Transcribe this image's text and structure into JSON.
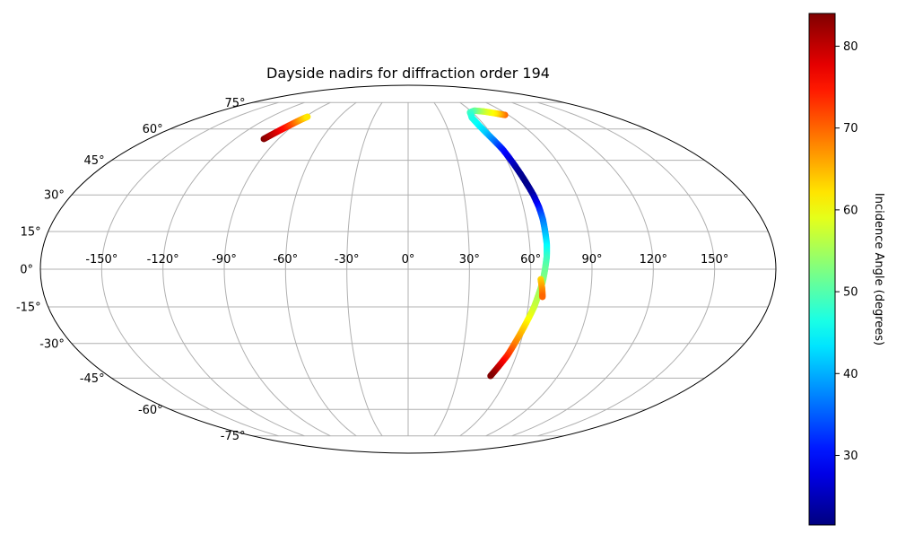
{
  "chart_data": {
    "type": "scatter",
    "projection": "mollweide",
    "title": "Dayside nadirs for diffraction order 194",
    "grid": true,
    "x_axis": {
      "ticks": [
        -150,
        -120,
        -90,
        -60,
        -30,
        0,
        30,
        60,
        90,
        120,
        150
      ],
      "tick_labels": [
        "-150°",
        "-120°",
        "-90°",
        "-60°",
        "-30°",
        "0°",
        "30°",
        "60°",
        "90°",
        "120°",
        "150°"
      ],
      "range": [
        -180,
        180
      ]
    },
    "y_axis": {
      "ticks": [
        -75,
        -60,
        -45,
        -30,
        -15,
        0,
        15,
        30,
        45,
        60,
        75
      ],
      "tick_labels": [
        "-75°",
        "-60°",
        "-45°",
        "-30°",
        "-15°",
        "0°",
        "15°",
        "30°",
        "45°",
        "60°",
        "75°"
      ],
      "range": [
        -90,
        90
      ]
    },
    "colorbar": {
      "label": "Incidence Angle (degrees)",
      "colormap": "jet",
      "range": [
        21.5,
        84
      ],
      "ticks": [
        30,
        40,
        50,
        60,
        70,
        80
      ],
      "tick_labels": [
        "30",
        "40",
        "50",
        "60",
        "70",
        "80"
      ]
    },
    "series": [
      {
        "points": [
          {
            "lon": -100.0,
            "lat": 55.0,
            "value": 84
          },
          {
            "lon": -98.0,
            "lat": 57.0,
            "value": 81
          },
          {
            "lon": -96.0,
            "lat": 59.0,
            "value": 78
          },
          {
            "lon": -94.0,
            "lat": 61.0,
            "value": 75
          },
          {
            "lon": -92.0,
            "lat": 63.0,
            "value": 71
          },
          {
            "lon": -90.0,
            "lat": 65.0,
            "value": 66
          },
          {
            "lon": -88.0,
            "lat": 66.5,
            "value": 62
          }
        ]
      },
      {
        "points": [
          {
            "lon": 87.0,
            "lat": 67.5,
            "value": 70
          },
          {
            "lon": 80.0,
            "lat": 68.5,
            "value": 62
          },
          {
            "lon": 72.0,
            "lat": 69.5,
            "value": 58
          },
          {
            "lon": 64.0,
            "lat": 70.0,
            "value": 52
          },
          {
            "lon": 58.0,
            "lat": 69.0,
            "value": 49
          },
          {
            "lon": 55.0,
            "lat": 66.0,
            "value": 47
          },
          {
            "lon": 55.5,
            "lat": 62.0,
            "value": 45
          },
          {
            "lon": 57.0,
            "lat": 58.0,
            "value": 42
          },
          {
            "lon": 59.0,
            "lat": 54.0,
            "value": 37
          },
          {
            "lon": 61.0,
            "lat": 50.0,
            "value": 31
          },
          {
            "lon": 62.5,
            "lat": 45.0,
            "value": 27
          },
          {
            "lon": 64.0,
            "lat": 40.0,
            "value": 23
          },
          {
            "lon": 65.5,
            "lat": 35.0,
            "value": 22
          },
          {
            "lon": 67.0,
            "lat": 30.0,
            "value": 24
          },
          {
            "lon": 68.0,
            "lat": 25.0,
            "value": 30
          },
          {
            "lon": 68.5,
            "lat": 20.0,
            "value": 36
          },
          {
            "lon": 68.5,
            "lat": 15.0,
            "value": 40
          },
          {
            "lon": 68.5,
            "lat": 10.0,
            "value": 44
          },
          {
            "lon": 68.0,
            "lat": 5.0,
            "value": 48
          },
          {
            "lon": 67.0,
            "lat": 0.0,
            "value": 51
          },
          {
            "lon": 66.0,
            "lat": -5.0,
            "value": 53
          },
          {
            "lon": 64.5,
            "lat": -10.0,
            "value": 55
          },
          {
            "lon": 63.0,
            "lat": -15.0,
            "value": 57
          },
          {
            "lon": 61.0,
            "lat": -20.0,
            "value": 60
          },
          {
            "lon": 59.0,
            "lat": -25.0,
            "value": 64
          },
          {
            "lon": 57.0,
            "lat": -30.0,
            "value": 68
          },
          {
            "lon": 55.0,
            "lat": -35.0,
            "value": 73
          },
          {
            "lon": 52.0,
            "lat": -40.0,
            "value": 79
          },
          {
            "lon": 49.5,
            "lat": -44.0,
            "value": 84
          }
        ]
      },
      {
        "points": [
          {
            "lon": 65.0,
            "lat": -4.0,
            "value": 63
          },
          {
            "lon": 66.0,
            "lat": -8.0,
            "value": 67
          },
          {
            "lon": 66.5,
            "lat": -11.0,
            "value": 70
          }
        ]
      }
    ]
  }
}
